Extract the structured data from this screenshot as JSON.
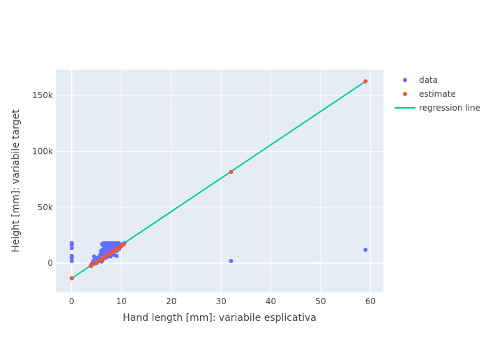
{
  "chart_data": {
    "type": "scatter",
    "title": "",
    "xlabel": "Hand length [mm]: variabile esplicativa",
    "ylabel": "Height [mm]: variabile target",
    "xlim": [
      -3.2,
      62.6
    ],
    "ylim": [
      -26000,
      173000
    ],
    "x_ticks": [
      0,
      10,
      20,
      30,
      40,
      50,
      60
    ],
    "x_tick_labels": [
      "0",
      "10",
      "20",
      "30",
      "40",
      "50",
      "60"
    ],
    "y_ticks": [
      0,
      50000,
      100000,
      150000
    ],
    "y_tick_labels": [
      "0",
      "50k",
      "100k",
      "150k"
    ],
    "grid": true,
    "legend_position": "right",
    "colors": {
      "data": "#636efa",
      "estimate": "#ef553b",
      "regression_line": "#00cc96",
      "plot_background": "#e5ecf6"
    },
    "series": [
      {
        "name": "data",
        "mode": "markers",
        "points": [
          [
            0,
            18000
          ],
          [
            0,
            16500
          ],
          [
            0,
            13500
          ],
          [
            0,
            6500
          ],
          [
            0,
            5000
          ],
          [
            0,
            2000
          ],
          [
            3.9,
            -1500
          ],
          [
            4.1,
            -500
          ],
          [
            4.3,
            1000
          ],
          [
            4.4,
            2500
          ],
          [
            4.5,
            6000
          ],
          [
            4.8,
            3500
          ],
          [
            5.0,
            0
          ],
          [
            5.2,
            5000
          ],
          [
            5.4,
            4500
          ],
          [
            5.5,
            3000
          ],
          [
            5.6,
            6000
          ],
          [
            5.8,
            8000
          ],
          [
            6.0,
            9000
          ],
          [
            6.0,
            1500
          ],
          [
            6.2,
            3000
          ],
          [
            6.2,
            12000
          ],
          [
            6.3,
            16000
          ],
          [
            6.4,
            18000
          ],
          [
            6.5,
            7000
          ],
          [
            6.6,
            14000
          ],
          [
            6.7,
            10000
          ],
          [
            6.8,
            18000
          ],
          [
            6.9,
            5000
          ],
          [
            7.0,
            16000
          ],
          [
            7.1,
            12000
          ],
          [
            7.2,
            18000
          ],
          [
            7.3,
            8000
          ],
          [
            7.4,
            14000
          ],
          [
            7.5,
            18000
          ],
          [
            7.6,
            10000
          ],
          [
            7.7,
            16000
          ],
          [
            7.8,
            6000
          ],
          [
            7.9,
            12000
          ],
          [
            8.0,
            18000
          ],
          [
            8.1,
            14000
          ],
          [
            8.2,
            9000
          ],
          [
            8.3,
            16000
          ],
          [
            8.4,
            18000
          ],
          [
            8.5,
            11000
          ],
          [
            8.6,
            15000
          ],
          [
            8.7,
            17000
          ],
          [
            8.8,
            13000
          ],
          [
            8.9,
            18000
          ],
          [
            9.0,
            15000
          ],
          [
            9.1,
            11000
          ],
          [
            9.2,
            17000
          ],
          [
            9.3,
            14000
          ],
          [
            9.4,
            18000
          ],
          [
            9.5,
            16000
          ],
          [
            9.6,
            13000
          ],
          [
            9.7,
            17000
          ],
          [
            9.8,
            15000
          ],
          [
            10.0,
            16000
          ],
          [
            10.3,
            17000
          ],
          [
            10.6,
            18000
          ],
          [
            6.5,
            15500
          ],
          [
            7.0,
            13500
          ],
          [
            7.5,
            11500
          ],
          [
            8.0,
            9500
          ],
          [
            8.5,
            7500
          ],
          [
            6.6,
            9000
          ],
          [
            7.2,
            6000
          ],
          [
            5.9,
            11000
          ],
          [
            6.1,
            17000
          ],
          [
            9.0,
            6500
          ],
          [
            32.0,
            2000
          ],
          [
            59.0,
            12000
          ]
        ]
      },
      {
        "name": "estimate",
        "mode": "markers",
        "points": [
          [
            0,
            -13500
          ],
          [
            3.9,
            -2500
          ],
          [
            4.5,
            -500
          ],
          [
            5.0,
            500
          ],
          [
            5.5,
            2000
          ],
          [
            6.0,
            3500
          ],
          [
            6.5,
            5000
          ],
          [
            7.0,
            6500
          ],
          [
            7.5,
            8000
          ],
          [
            8.0,
            9500
          ],
          [
            8.5,
            11000
          ],
          [
            9.0,
            12500
          ],
          [
            9.5,
            14000
          ],
          [
            10.0,
            15500
          ],
          [
            10.5,
            17000
          ],
          [
            32.0,
            81500
          ],
          [
            59.0,
            162500
          ]
        ]
      },
      {
        "name": "regression line",
        "mode": "lines",
        "points": [
          [
            0,
            -13500
          ],
          [
            59.0,
            162500
          ]
        ]
      }
    ]
  }
}
